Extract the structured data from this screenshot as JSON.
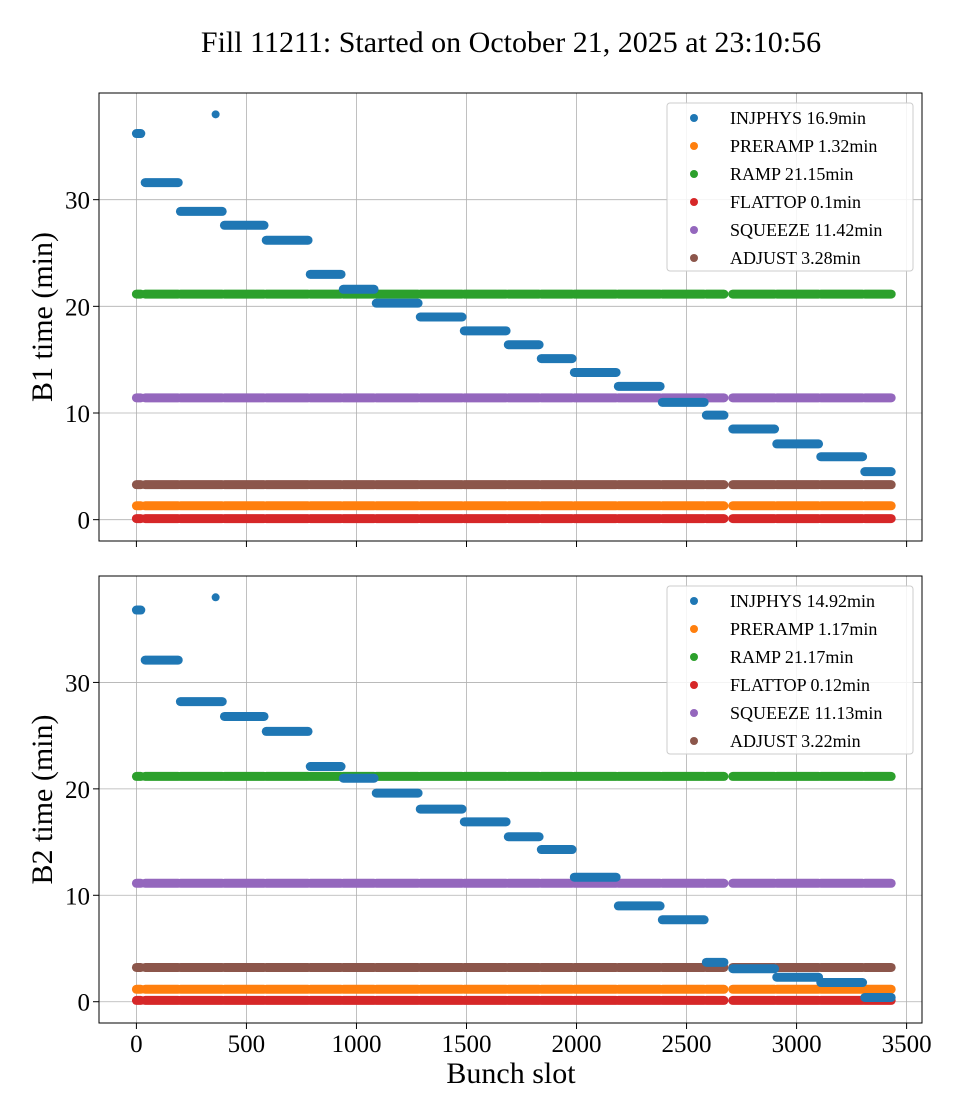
{
  "chart_data": {
    "type": "scatter",
    "title": "Fill 11211: Started on October 21, 2025 at 23:10:56",
    "xlabel": "Bunch slot",
    "xlim": [
      -170,
      3570
    ],
    "xticks": [
      0,
      500,
      1000,
      1500,
      2000,
      2500,
      3000,
      3500
    ],
    "xtick_labels": [
      "0",
      "500",
      "1000",
      "1500",
      "2000",
      "2500",
      "3000",
      "3500"
    ],
    "grid": true,
    "legend_position": "top-right",
    "colors": {
      "INJPHYS": "#1f77b4",
      "PRERAMP": "#ff7f0e",
      "RAMP": "#2ca02c",
      "FLATTOP": "#d62728",
      "SQUEEZE": "#9467bd",
      "ADJUST": "#8c564b"
    },
    "panels": [
      {
        "ylabel": "B1 time (min)",
        "ylim": [
          -2,
          40
        ],
        "yticks": [
          0,
          10,
          20,
          30
        ],
        "ytick_labels": [
          "0",
          "10",
          "20",
          "30"
        ],
        "trains": [
          [
            0,
            20
          ],
          [
            40,
            190
          ],
          [
            200,
            390
          ],
          [
            400,
            580
          ],
          [
            590,
            780
          ],
          [
            790,
            930
          ],
          [
            940,
            1080
          ],
          [
            1090,
            1280
          ],
          [
            1290,
            1480
          ],
          [
            1490,
            1680
          ],
          [
            1690,
            1830
          ],
          [
            1840,
            1980
          ],
          [
            1990,
            2180
          ],
          [
            2190,
            2380
          ],
          [
            2390,
            2580
          ],
          [
            2590,
            2670
          ],
          [
            2710,
            2900
          ],
          [
            2910,
            3100
          ],
          [
            3110,
            3300
          ],
          [
            3310,
            3430
          ]
        ],
        "extra_points": [
          {
            "x": 360,
            "y": 38.0,
            "series": "INJPHYS"
          }
        ],
        "series": [
          {
            "name": "INJPHYS",
            "legend": "INJPHYS 16.9min",
            "values": [
              36.2,
              31.6,
              28.9,
              27.6,
              26.2,
              23.0,
              21.6,
              20.3,
              19.0,
              17.7,
              16.4,
              15.1,
              13.8,
              12.5,
              11.0,
              9.8,
              8.5,
              7.1,
              5.9,
              4.5
            ]
          },
          {
            "name": "PRERAMP",
            "legend": "PRERAMP 1.32min",
            "values": [
              1.3
            ]
          },
          {
            "name": "RAMP",
            "legend": "RAMP 21.15min",
            "values": [
              21.15
            ]
          },
          {
            "name": "FLATTOP",
            "legend": "FLATTOP 0.1min",
            "values": [
              0.1
            ]
          },
          {
            "name": "SQUEEZE",
            "legend": "SQUEEZE 11.42min",
            "values": [
              11.42
            ]
          },
          {
            "name": "ADJUST",
            "legend": "ADJUST 3.28min",
            "values": [
              3.28
            ]
          }
        ]
      },
      {
        "ylabel": "B2 time (min)",
        "ylim": [
          -2,
          40
        ],
        "yticks": [
          0,
          10,
          20,
          30
        ],
        "ytick_labels": [
          "0",
          "10",
          "20",
          "30"
        ],
        "trains": [
          [
            0,
            20
          ],
          [
            40,
            190
          ],
          [
            200,
            390
          ],
          [
            400,
            580
          ],
          [
            590,
            780
          ],
          [
            790,
            930
          ],
          [
            940,
            1080
          ],
          [
            1090,
            1280
          ],
          [
            1290,
            1480
          ],
          [
            1490,
            1680
          ],
          [
            1690,
            1830
          ],
          [
            1840,
            1980
          ],
          [
            1990,
            2180
          ],
          [
            2190,
            2380
          ],
          [
            2390,
            2580
          ],
          [
            2590,
            2670
          ],
          [
            2710,
            2900
          ],
          [
            2910,
            3100
          ],
          [
            3110,
            3300
          ],
          [
            3310,
            3430
          ]
        ],
        "extra_points": [
          {
            "x": 360,
            "y": 38.0,
            "series": "INJPHYS"
          }
        ],
        "series": [
          {
            "name": "INJPHYS",
            "legend": "INJPHYS 14.92min",
            "values": [
              36.8,
              32.1,
              28.2,
              26.8,
              25.4,
              22.1,
              21.0,
              19.6,
              18.1,
              16.9,
              15.5,
              14.3,
              11.7,
              9.0,
              7.7,
              3.7,
              3.1,
              2.3,
              1.8,
              0.4
            ]
          },
          {
            "name": "PRERAMP",
            "legend": "PRERAMP 1.17min",
            "values": [
              1.17
            ]
          },
          {
            "name": "RAMP",
            "legend": "RAMP 21.17min",
            "values": [
              21.17
            ]
          },
          {
            "name": "FLATTOP",
            "legend": "FLATTOP 0.12min",
            "values": [
              0.12
            ]
          },
          {
            "name": "SQUEEZE",
            "legend": "SQUEEZE 11.13min",
            "values": [
              11.13
            ]
          },
          {
            "name": "ADJUST",
            "legend": "ADJUST 3.22min",
            "values": [
              3.22
            ]
          }
        ]
      }
    ]
  }
}
